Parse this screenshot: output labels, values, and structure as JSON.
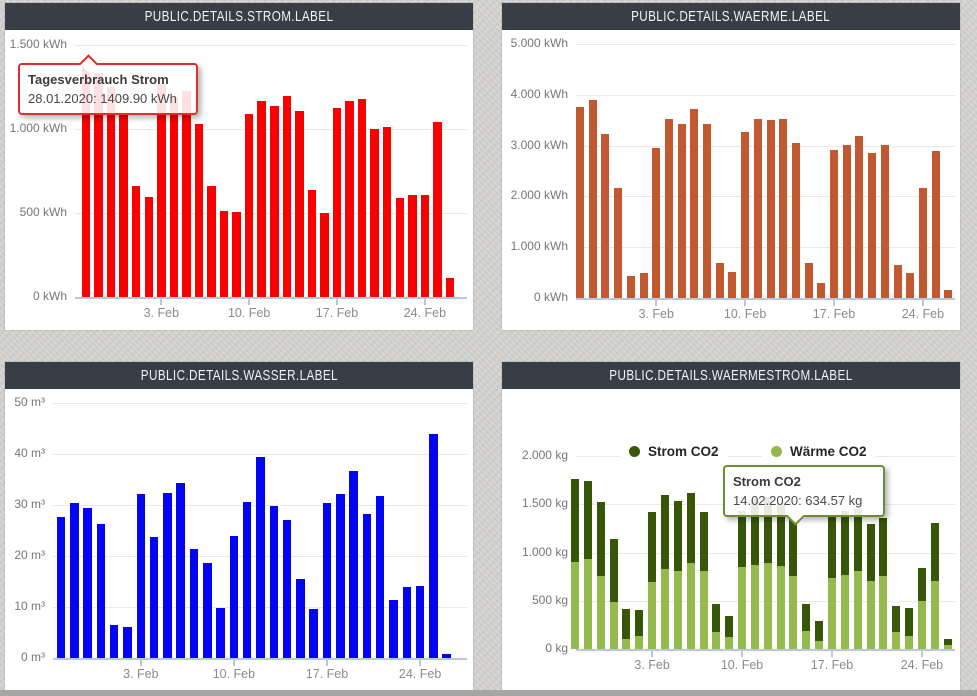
{
  "page": {
    "background": "#d5d4d1"
  },
  "tooltips": {
    "strom": {
      "title": "Tagesverbrauch Strom",
      "line": "28.01.2020: 1409.90 kWh",
      "border_color": "#df2f2f",
      "target_category": "28.01"
    },
    "waermestrom": {
      "title": "Strom CO2",
      "line": "14.02.2020: 634.57 kg",
      "border_color": "#6e8c35",
      "target_category": "14.02"
    }
  },
  "chart_data": [
    {
      "type": "bar",
      "title": "PUBLIC.DETAILS.STROM.LABEL",
      "unit": "kWh",
      "bar_color": "#fa0000",
      "ylim": [
        0,
        1500
      ],
      "y_tick_labels": [
        "1.500 kWh",
        "1.000 kWh",
        "500 kWh",
        "0 kWh"
      ],
      "x_tick_labels": [
        "3. Feb",
        "10. Feb",
        "17. Feb",
        "24. Feb"
      ],
      "x_tick_day_indices": [
        6,
        13,
        20,
        27
      ],
      "categories": [
        "28.01",
        "29.01",
        "30.01",
        "31.01",
        "01.02",
        "02.02",
        "03.02",
        "04.02",
        "05.02",
        "06.02",
        "07.02",
        "08.02",
        "09.02",
        "10.02",
        "11.02",
        "12.02",
        "13.02",
        "14.02",
        "15.02",
        "16.02",
        "17.02",
        "18.02",
        "19.02",
        "20.02",
        "21.02",
        "22.02",
        "23.02",
        "24.02",
        "25.02",
        "26.02"
      ],
      "values": [
        1409.9,
        1336,
        1248,
        1095,
        662,
        595,
        1268,
        1193,
        1225,
        1028,
        658,
        510,
        504,
        1087,
        1166,
        1134,
        1195,
        1107,
        638,
        500,
        1124,
        1164,
        1176,
        998,
        1010,
        589,
        608,
        607,
        1044,
        114
      ]
    },
    {
      "type": "bar",
      "title": "PUBLIC.DETAILS.WAERME.LABEL",
      "unit": "kWh",
      "bar_color": "#c0592f",
      "ylim": [
        0,
        5000
      ],
      "y_tick_labels": [
        "5.000 kWh",
        "4.000 kWh",
        "3.000 kWh",
        "2.000 kWh",
        "1.000 kWh",
        "0 kWh"
      ],
      "x_tick_labels": [
        "3. Feb",
        "10. Feb",
        "17. Feb",
        "24. Feb"
      ],
      "x_tick_day_indices": [
        6,
        13,
        20,
        27
      ],
      "categories": [
        "28.01",
        "29.01",
        "30.01",
        "31.01",
        "01.02",
        "02.02",
        "03.02",
        "04.02",
        "05.02",
        "06.02",
        "07.02",
        "08.02",
        "09.02",
        "10.02",
        "11.02",
        "12.02",
        "13.02",
        "14.02",
        "15.02",
        "16.02",
        "17.02",
        "18.02",
        "19.02",
        "20.02",
        "21.02",
        "22.02",
        "23.02",
        "24.02",
        "25.02",
        "26.02"
      ],
      "values": [
        3760,
        3900,
        3220,
        2160,
        440,
        500,
        2950,
        3530,
        3430,
        3725,
        3420,
        685,
        505,
        3270,
        3515,
        3500,
        3530,
        3050,
        685,
        305,
        2920,
        3020,
        3195,
        2845,
        3015,
        640,
        500,
        2175,
        2890,
        150
      ]
    },
    {
      "type": "bar",
      "title": "PUBLIC.DETAILS.WASSER.LABEL",
      "unit": "m³",
      "bar_color": "#0404f4",
      "ylim": [
        0,
        50
      ],
      "y_tick_labels": [
        "50 m³",
        "40 m³",
        "30 m³",
        "20 m³",
        "10 m³",
        "0 m³"
      ],
      "x_tick_labels": [
        "3. Feb",
        "10. Feb",
        "17. Feb",
        "24. Feb"
      ],
      "x_tick_day_indices": [
        6,
        13,
        20,
        27
      ],
      "categories": [
        "28.01",
        "29.01",
        "30.01",
        "31.01",
        "01.02",
        "02.02",
        "03.02",
        "04.02",
        "05.02",
        "06.02",
        "07.02",
        "08.02",
        "09.02",
        "10.02",
        "11.02",
        "12.02",
        "13.02",
        "14.02",
        "15.02",
        "16.02",
        "17.02",
        "18.02",
        "19.02",
        "20.02",
        "21.02",
        "22.02",
        "23.02",
        "24.02",
        "25.02",
        "26.02"
      ],
      "values": [
        27.6,
        30.4,
        29.4,
        26.3,
        6.4,
        6.1,
        32.1,
        23.7,
        32.4,
        34.4,
        21.4,
        18.7,
        9.9,
        23.9,
        30.5,
        39.4,
        29.8,
        27.0,
        15.4,
        9.7,
        30.4,
        32.1,
        36.6,
        28.3,
        31.7,
        11.4,
        14.0,
        14.2,
        44.0,
        0.7
      ]
    },
    {
      "type": "bar",
      "stacked": true,
      "title": "PUBLIC.DETAILS.WAERMESTROM.LABEL",
      "unit": "kg",
      "ylim": [
        0,
        2000
      ],
      "y_tick_labels": [
        "2.000 kg",
        "1.500 kg",
        "1.000 kg",
        "500 kg",
        "0 kg"
      ],
      "x_tick_labels": [
        "3. Feb",
        "10. Feb",
        "17. Feb",
        "24. Feb"
      ],
      "x_tick_day_indices": [
        6,
        13,
        20,
        27
      ],
      "categories": [
        "28.01",
        "29.01",
        "30.01",
        "31.01",
        "01.02",
        "02.02",
        "03.02",
        "04.02",
        "05.02",
        "06.02",
        "07.02",
        "08.02",
        "09.02",
        "10.02",
        "11.02",
        "12.02",
        "13.02",
        "14.02",
        "15.02",
        "16.02",
        "17.02",
        "18.02",
        "19.02",
        "20.02",
        "21.02",
        "22.02",
        "23.02",
        "24.02",
        "25.02",
        "26.02"
      ],
      "series": [
        {
          "name": "Strom CO2",
          "color": "#375608",
          "values": [
            859,
            814,
            769,
            655,
            307,
            262,
            734,
            769,
            727,
            728,
            614,
            294,
            221,
            589,
            680,
            680,
            650,
            634.57,
            283,
            214,
            645,
            665,
            638,
            590,
            596,
            276,
            286,
            345,
            610,
            58
          ]
        },
        {
          "name": "Wärme CO2",
          "color": "#95b94d",
          "values": [
            900,
            931,
            759,
            486,
            107,
            138,
            690,
            828,
            807,
            893,
            810,
            172,
            124,
            845,
            870,
            890,
            860,
            759,
            183,
            79,
            734,
            769,
            810,
            707,
            759,
            172,
            138,
            493,
            700,
            45
          ]
        }
      ]
    }
  ]
}
